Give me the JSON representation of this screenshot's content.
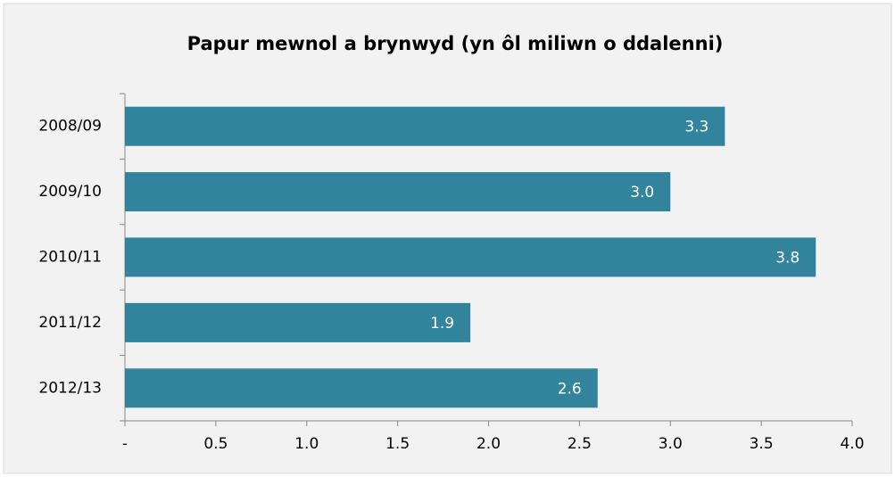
{
  "chart_data": {
    "type": "bar",
    "orientation": "horizontal",
    "title": "Papur mewnol a brynwyd (yn ôl miliwn o ddalenni)",
    "categories": [
      "2008/09",
      "2009/10",
      "2010/11",
      "2011/12",
      "2012/13"
    ],
    "values": [
      3.3,
      3.0,
      3.8,
      1.9,
      2.6
    ],
    "value_labels": [
      "3.3",
      "3.0",
      "3.8",
      "1.9",
      "2.6"
    ],
    "color": "#31849b",
    "xlim": [
      0,
      4
    ],
    "xticks": [
      {
        "value": 0,
        "label": "-"
      },
      0.5,
      {
        "value": 1,
        "label": "1.0"
      },
      1.5,
      {
        "value": 2,
        "label": "2.0"
      },
      2.5,
      {
        "value": 3,
        "label": "3.0"
      },
      3.5,
      {
        "value": 4,
        "label": "4.0"
      }
    ],
    "grid": false
  }
}
